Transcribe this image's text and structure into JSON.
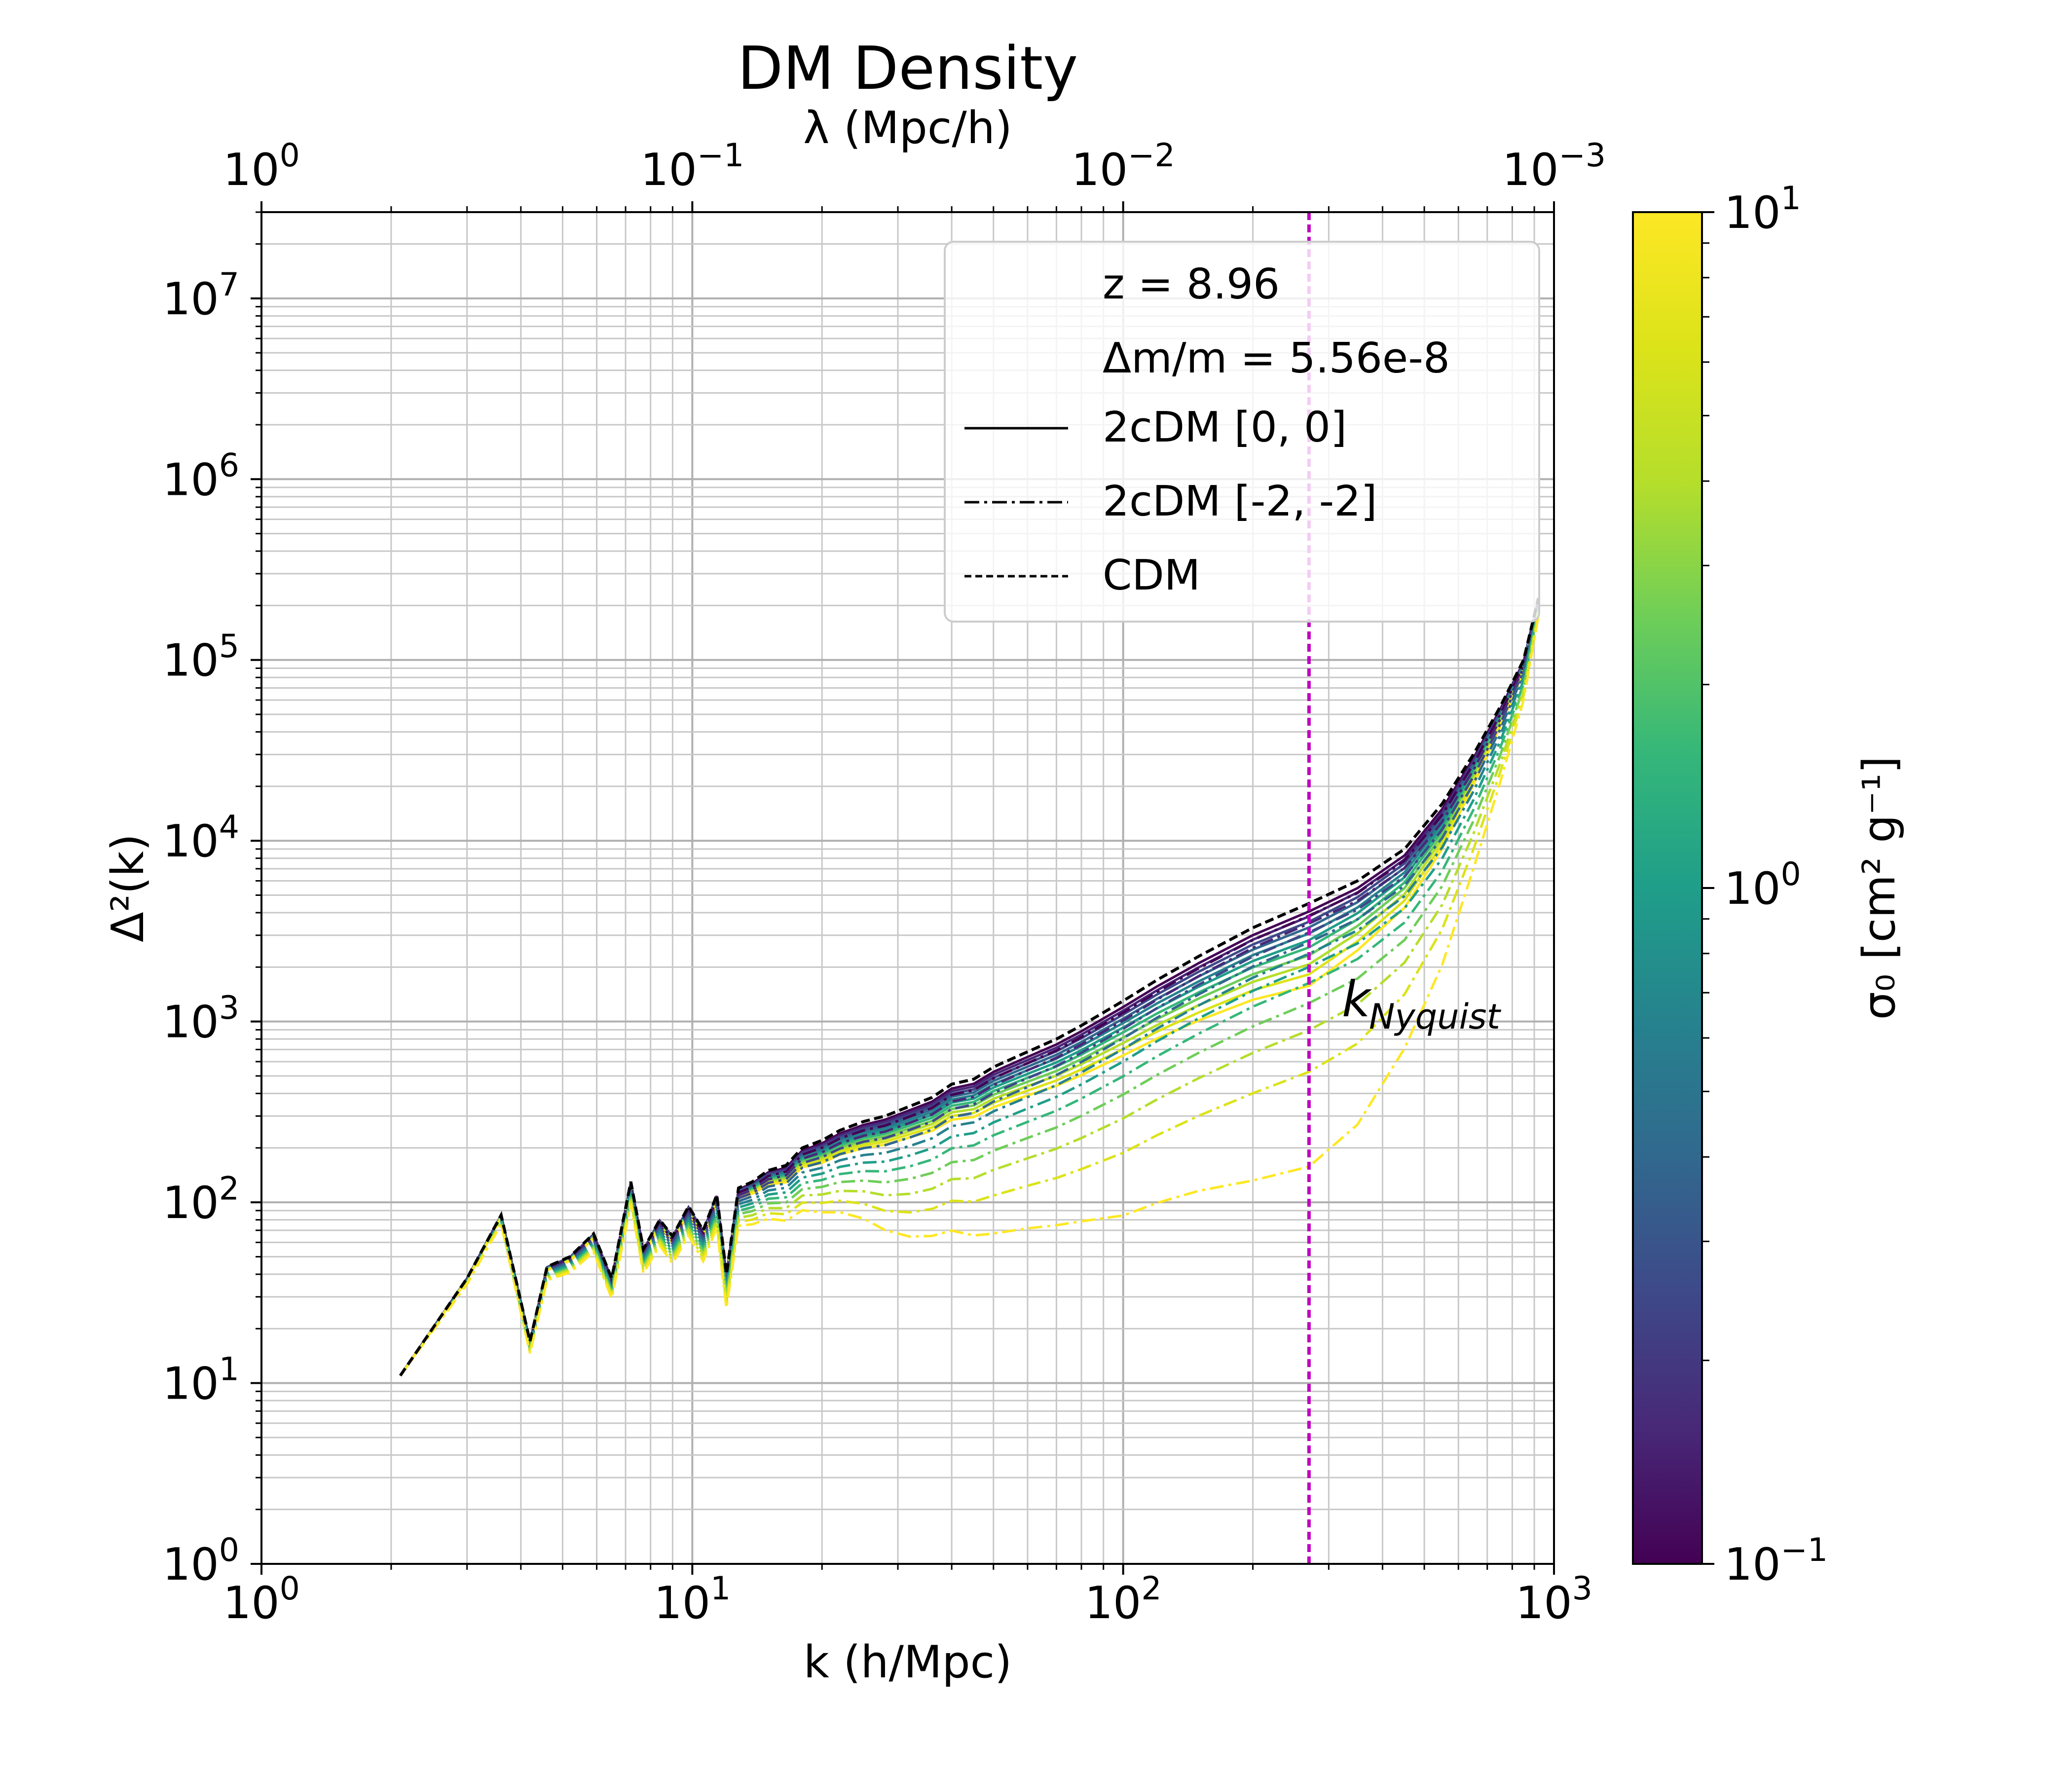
{
  "chart_data": {
    "type": "line",
    "title": "DM Density",
    "xlabel": "k (h/Mpc)",
    "ylabel": "Δ²(k)",
    "top_xlabel": "λ (Mpc/h)",
    "xscale": "log",
    "yscale": "log",
    "xlim": [
      1,
      1000
    ],
    "ylim": [
      1,
      30000000
    ],
    "top_xlim": [
      1,
      0.001
    ],
    "grid": true,
    "x_ticks": [
      "10^0",
      "10^1",
      "10^2",
      "10^3"
    ],
    "y_ticks": [
      "10^0",
      "10^1",
      "10^2",
      "10^3",
      "10^4",
      "10^5",
      "10^6",
      "10^7"
    ],
    "top_x_ticks": [
      "10^0",
      "10^-1",
      "10^-2",
      "10^-3"
    ],
    "legend": {
      "placement": "upper-right",
      "text_lines": [
        "z = 8.96",
        "Δm/m = 5.56e-8"
      ],
      "entries": [
        {
          "label": "2cDM [0, 0]",
          "linestyle": "solid"
        },
        {
          "label": "2cDM [-2, -2]",
          "linestyle": "dashdot"
        },
        {
          "label": "CDM",
          "linestyle": "dashed"
        }
      ]
    },
    "vline": {
      "x": 270,
      "color": "#c000c0",
      "label": "k_Nyquist",
      "label_main": "k",
      "label_sub": "Nyquist"
    },
    "colorbar": {
      "label": "σ₀ [cm² g⁻¹]",
      "scale": "log",
      "range": [
        0.1,
        10
      ],
      "colormap": "viridis",
      "ticks": [
        "10^-1",
        "10^0",
        "10^1"
      ]
    },
    "sigma_values": [
      0.1,
      0.158,
      0.251,
      0.398,
      0.631,
      1.0,
      1.585,
      2.512,
      3.981,
      6.31,
      10.0
    ],
    "base_spectrum": {
      "x": [
        2.1,
        3.0,
        3.6,
        4.2,
        4.6,
        5.2,
        5.9,
        6.5,
        7.2,
        7.7,
        8.4,
        9.0,
        9.8,
        10.6,
        11.4,
        12.0,
        12.8,
        13.8,
        15.0,
        16.5,
        18.0,
        20.0,
        22.0,
        25.0,
        28.0,
        32.0,
        36.0,
        40.0,
        45.0,
        50.0,
        60.0,
        70.0,
        80.0,
        100.0,
        120.0,
        150.0,
        200.0,
        270.0,
        350.0,
        450.0,
        550.0,
        650.0,
        750.0,
        850.0,
        920.0
      ],
      "cdm": [
        11,
        38,
        85,
        17,
        44,
        50,
        67,
        38,
        130,
        55,
        80,
        65,
        95,
        70,
        110,
        40,
        120,
        130,
        150,
        160,
        200,
        220,
        250,
        280,
        300,
        340,
        380,
        450,
        480,
        560,
        680,
        800,
        950,
        1300,
        1700,
        2300,
        3300,
        4500,
        6000,
        9000,
        16000,
        30000,
        55000,
        100000,
        220000
      ]
    },
    "series": [
      {
        "name": "CDM",
        "linestyle": "dashed",
        "color": "#000000"
      },
      {
        "name": "2cDM [0, 0]",
        "linestyle": "solid",
        "colored_by": "sigma_values",
        "suppression_at_sigma_max": {
          "x": [
            2.1,
            12.0,
            20.0,
            50.0,
            100.0,
            200.0,
            270.0,
            500.0,
            900.0,
            920.0
          ],
          "factor": [
            1.0,
            0.9,
            0.75,
            0.6,
            0.5,
            0.4,
            0.35,
            0.5,
            0.9,
            1.0
          ]
        }
      },
      {
        "name": "2cDM [-2, -2]",
        "linestyle": "dashdot",
        "colored_by": "sigma_values",
        "suppression_at_sigma_max": {
          "x": [
            2.1,
            12.0,
            20.0,
            30.0,
            50.0,
            100.0,
            200.0,
            270.0,
            400.0,
            600.0,
            800.0,
            920.0
          ],
          "factor": [
            1.0,
            0.65,
            0.4,
            0.2,
            0.12,
            0.065,
            0.04,
            0.035,
            0.05,
            0.15,
            0.45,
            0.8
          ]
        }
      }
    ]
  }
}
